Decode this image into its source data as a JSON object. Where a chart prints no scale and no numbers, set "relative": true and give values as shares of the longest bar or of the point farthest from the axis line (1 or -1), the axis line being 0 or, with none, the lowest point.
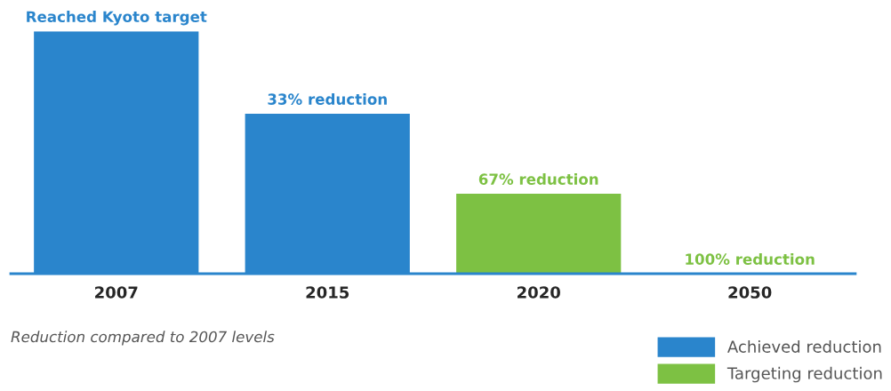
{
  "chart_data": {
    "type": "bar",
    "relative": true,
    "categories": [
      "2007",
      "2015",
      "2020",
      "2050"
    ],
    "series": [
      {
        "name": "Achieved reduction",
        "color": "#2a85cc",
        "values": [
          1,
          0.66,
          null,
          null
        ]
      },
      {
        "name": "Targeting reduction",
        "color": "#7dc143",
        "values": [
          null,
          null,
          0.33,
          0
        ]
      }
    ],
    "annotations": [
      {
        "text": "Reached Kyoto target",
        "x": "2007",
        "y": 1
      },
      {
        "text": "33% reduction",
        "x": "2015",
        "y": 0.66
      },
      {
        "text": "67% reduction",
        "x": "2020",
        "y": 0.33
      },
      {
        "text": "100% reduction",
        "x": "2050",
        "y": 0
      },
      "Reduction compared to 2007 levels"
    ],
    "legend": "bottom right",
    "grid": false
  }
}
